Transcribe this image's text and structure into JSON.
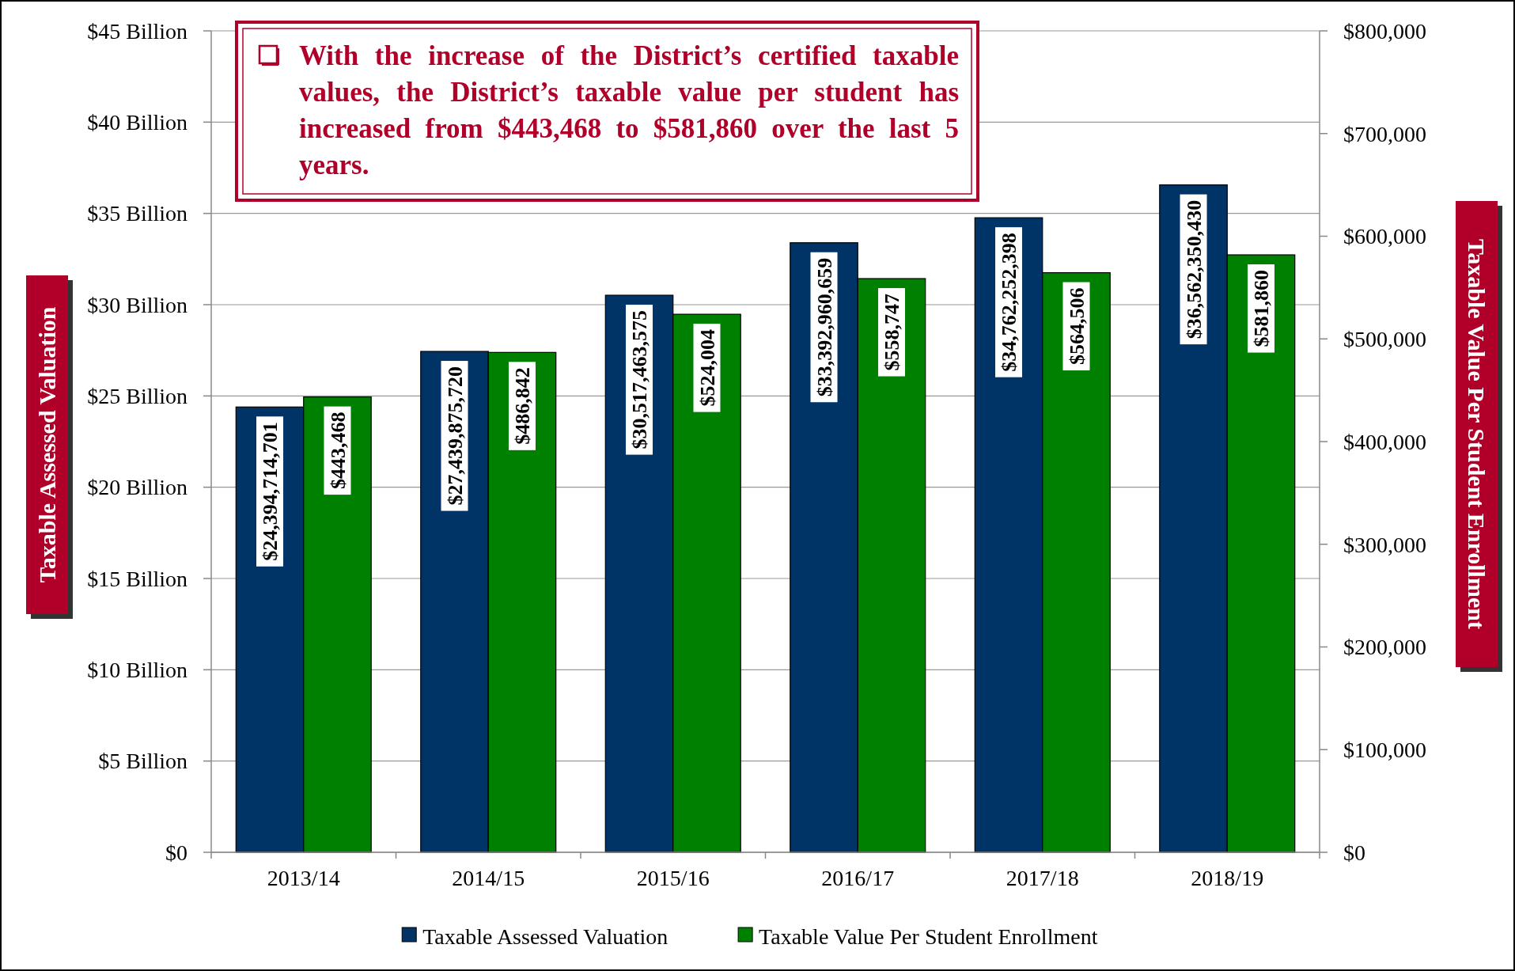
{
  "chart_data": {
    "type": "bar",
    "ylabel": "Taxable Assessed Valuation",
    "y2label": "Taxable Value Per Student Enrollment",
    "categories": [
      "2013/14",
      "2014/15",
      "2015/16",
      "2016/17",
      "2017/18",
      "2018/19"
    ],
    "series": [
      {
        "name": "Taxable Assessed Valuation",
        "color": "#003366",
        "values": [
          24.394714701,
          27.43987572,
          30.517463575,
          33.392960659,
          34.762252398,
          36.56235043
        ]
      },
      {
        "name": "Taxable Value Per Student Enrollment",
        "color": "#008000",
        "axis": "y2",
        "values": [
          443468,
          486842,
          524004,
          558747,
          564506,
          581860
        ],
        "value_labels": [
          "$443,468",
          "$486,842",
          "$524,004",
          "$558,747",
          "$564,506",
          "$581,860"
        ]
      }
    ],
    "ylim": [
      0,
      45
    ],
    "yticks": [
      {
        "value": 0,
        "label": "$0"
      },
      {
        "value": 5,
        "label": "$5 Billion"
      },
      {
        "value": 10,
        "label": "$10 Billion"
      },
      {
        "value": 15,
        "label": "$15 Billion"
      },
      {
        "value": 20,
        "label": "$20 Billion"
      },
      {
        "value": 25,
        "label": "$25 Billion"
      },
      {
        "value": 30,
        "label": "$30 Billion"
      },
      {
        "value": 35,
        "label": "$35 Billion"
      },
      {
        "value": 40,
        "label": "$40 Billion"
      },
      {
        "value": 45,
        "label": "$45 Billion"
      }
    ],
    "y2lim": [
      0,
      800000
    ],
    "y2ticks": [
      {
        "value": 0,
        "label": "$0"
      },
      {
        "value": 100000,
        "label": "$100,000"
      },
      {
        "value": 200000,
        "label": "$200,000"
      },
      {
        "value": 300000,
        "label": "$300,000"
      },
      {
        "value": 400000,
        "label": "$400,000"
      },
      {
        "value": 500000,
        "label": "$500,000"
      },
      {
        "value": 600000,
        "label": "$600,000"
      },
      {
        "value": 700000,
        "label": "$700,000"
      },
      {
        "value": 800000,
        "label": "$800,000"
      }
    ],
    "annotations": [
      "With the increase of the District’s certified taxable values, the District’s taxable value per student has increased from $443,468 to $581,860 over the last 5 years.",
      {
        "text": "$24,394,714,701",
        "x": "2013/14",
        "y": 24.394714701
      },
      {
        "text": "$27,439,875,720",
        "x": "2014/15",
        "y": 27.43987572
      },
      {
        "text": "$30,517,463,575",
        "x": "2015/16",
        "y": 30.517463575
      },
      {
        "text": "$33,392,960,659",
        "x": "2016/17",
        "y": 33.392960659
      },
      {
        "text": "$34,762,252,398",
        "x": "2017/18",
        "y": 34.762252398
      },
      {
        "text": "$36,562,350,430",
        "x": "2018/19",
        "y": 36.56235043
      }
    ],
    "grid": "y",
    "legend": "bottom"
  }
}
